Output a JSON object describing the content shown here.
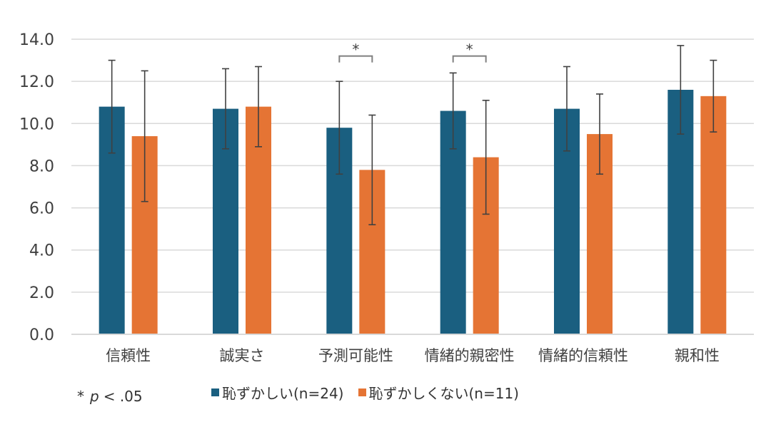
{
  "chart_data": {
    "type": "bar",
    "categories": [
      "信頼性",
      "誠実さ",
      "予測可能性",
      "情緒的親密性",
      "情緒的信頼性",
      "親和性"
    ],
    "series": [
      {
        "name": "恥ずかしい(n=24)",
        "color": "#1a5f80",
        "values": [
          10.8,
          10.7,
          9.8,
          10.6,
          10.7,
          11.6
        ],
        "error": [
          2.2,
          1.9,
          2.2,
          1.8,
          2.0,
          2.1
        ]
      },
      {
        "name": "恥ずかしくない(n=11)",
        "color": "#e57434",
        "values": [
          9.4,
          10.8,
          7.8,
          8.4,
          9.5,
          11.3
        ],
        "error": [
          3.1,
          1.9,
          2.6,
          2.7,
          1.9,
          1.7
        ]
      }
    ],
    "yticks": [
      "0.0",
      "2.0",
      "4.0",
      "6.0",
      "8.0",
      "10.0",
      "12.0",
      "14.0"
    ],
    "ylim": [
      0,
      14
    ],
    "grid": true,
    "legend_position": "bottom",
    "significance": [
      {
        "category_index": 2,
        "label": "*",
        "level": 13.2
      },
      {
        "category_index": 3,
        "label": "*",
        "level": 13.2
      }
    ],
    "note": {
      "star": "*",
      "p": "p",
      "rest": "< .05"
    },
    "colors": {
      "grid": "#d9d9d9",
      "error_bar": "#404040",
      "bracket": "#7f7f7f"
    }
  }
}
